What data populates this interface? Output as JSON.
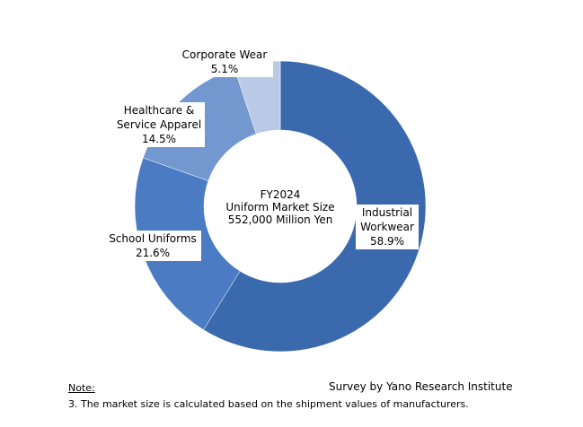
{
  "chart_data": {
    "type": "donut",
    "categories": [
      "Industrial Workwear",
      "School Uniforms",
      "Healthcare & Service Apparel",
      "Corporate Wear"
    ],
    "values": [
      58.9,
      21.6,
      14.5,
      5.1
    ],
    "value_labels": [
      "58.9%",
      "21.6%",
      "14.5%",
      "5.1%"
    ],
    "colors": [
      "#3b69ad",
      "#4a7bc3",
      "#7398d0",
      "#b9c9e6"
    ],
    "center_text": [
      "FY2024",
      "Uniform Market Size",
      "552,000  Million Yen"
    ],
    "note_label": "Note:",
    "note": "3. The market size is calculated based on the shipment values of manufacturers.",
    "source": "Survey by Yano Research Institute"
  }
}
